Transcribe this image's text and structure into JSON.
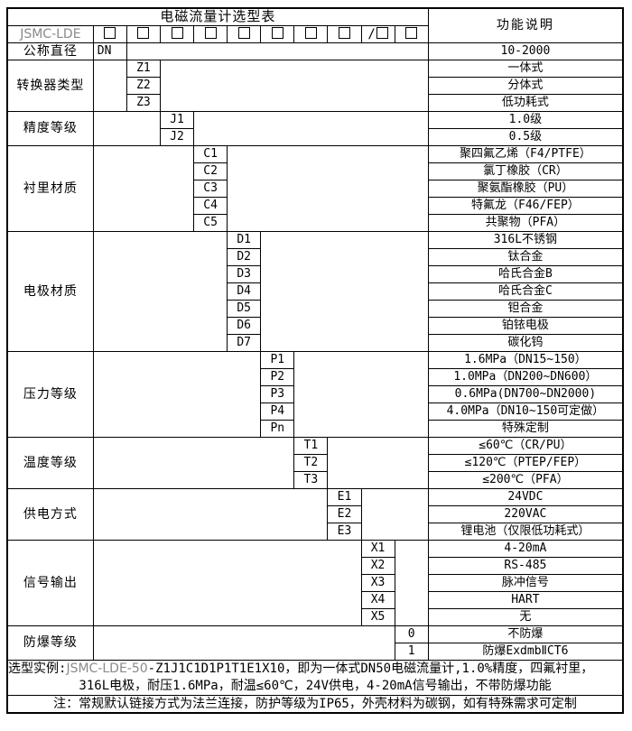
{
  "table": {
    "title": "电磁流量计选型表",
    "function_header": "功能说明",
    "model_prefix": "JSMC-LDE",
    "checkbox_slots": [
      "",
      "",
      "",
      "",
      "",
      "",
      "",
      "",
      "/",
      ""
    ],
    "num_code_columns": 10,
    "sections": [
      {
        "category": "公称直径",
        "code_col": 0,
        "rows": [
          {
            "code": "DN",
            "desc": "10-2000"
          }
        ]
      },
      {
        "category": "转换器类型",
        "code_col": 1,
        "rows": [
          {
            "code": "Z1",
            "desc": "一体式"
          },
          {
            "code": "Z2",
            "desc": "分体式"
          },
          {
            "code": "Z3",
            "desc": "低功耗式"
          }
        ]
      },
      {
        "category": "精度等级",
        "code_col": 2,
        "rows": [
          {
            "code": "J1",
            "desc": "1.0级"
          },
          {
            "code": "J2",
            "desc": "0.5级"
          }
        ]
      },
      {
        "category": "衬里材质",
        "code_col": 3,
        "rows": [
          {
            "code": "C1",
            "desc": "聚四氟乙烯（F4/PTFE）"
          },
          {
            "code": "C2",
            "desc": "氯丁橡胶（CR）"
          },
          {
            "code": "C3",
            "desc": "聚氨酯橡胶（PU）"
          },
          {
            "code": "C4",
            "desc": "特氟龙（F46/FEP）"
          },
          {
            "code": "C5",
            "desc": "共聚物（PFA）"
          }
        ]
      },
      {
        "category": "电极材质",
        "code_col": 4,
        "rows": [
          {
            "code": "D1",
            "desc": "316L不锈钢"
          },
          {
            "code": "D2",
            "desc": "钛合金"
          },
          {
            "code": "D3",
            "desc": "哈氏合金B"
          },
          {
            "code": "D4",
            "desc": "哈氏合金C"
          },
          {
            "code": "D5",
            "desc": "钽合金"
          },
          {
            "code": "D6",
            "desc": "铂铱电极"
          },
          {
            "code": "D7",
            "desc": "碳化钨"
          }
        ]
      },
      {
        "category": "压力等级",
        "code_col": 5,
        "rows": [
          {
            "code": "P1",
            "desc": "1.6MPa（DN15~150）"
          },
          {
            "code": "P2",
            "desc": "1.0MPa（DN200~DN600）"
          },
          {
            "code": "P3",
            "desc": "0.6MPa(DN700~DN2000)"
          },
          {
            "code": "P4",
            "desc": "4.0MPa（DN10~150可定做）"
          },
          {
            "code": "Pn",
            "desc": "特殊定制"
          }
        ]
      },
      {
        "category": "温度等级",
        "code_col": 6,
        "rows": [
          {
            "code": "T1",
            "desc": "≤60℃（CR/PU）"
          },
          {
            "code": "T2",
            "desc": "≤120℃（PTEP/FEP）"
          },
          {
            "code": "T3",
            "desc": "≤200℃（PFA）"
          }
        ]
      },
      {
        "category": "供电方式",
        "code_col": 7,
        "rows": [
          {
            "code": "E1",
            "desc": "24VDC"
          },
          {
            "code": "E2",
            "desc": "220VAC"
          },
          {
            "code": "E3",
            "desc": "锂电池（仅限低功耗式）"
          }
        ]
      },
      {
        "category": "信号输出",
        "code_col": 8,
        "rows": [
          {
            "code": "X1",
            "desc": "4-20mA"
          },
          {
            "code": "X2",
            "desc": "RS-485"
          },
          {
            "code": "X3",
            "desc": "脉冲信号"
          },
          {
            "code": "X4",
            "desc": "HART"
          },
          {
            "code": "X5",
            "desc": "无"
          }
        ]
      },
      {
        "category": "防爆等级",
        "code_col": 9,
        "rows": [
          {
            "code": "0",
            "desc": "不防爆"
          },
          {
            "code": "1",
            "desc": "防爆ExdmbⅡCT6"
          }
        ]
      }
    ]
  },
  "footer": {
    "example_prefix": "选型实例:",
    "example_model": "JSMC-LDE-50",
    "example_rest": "-Z1J1C1D1P1T1E1X10，即为一体式DN50电磁流量计,1.0%精度，四氟衬里，",
    "example_line2": "316L电极，耐压1.6MPa，耐温≤60℃，24V供电，4-20mA信号输出，不带防爆功能",
    "note": "注：常规默认链接方式为法兰连接，防护等级为IP65，外壳材料为碳钢，如有特殊需求可定制"
  },
  "colors": {
    "border": "#000000",
    "text": "#000000",
    "model_gray": "#8a8a8a",
    "background": "#ffffff"
  }
}
